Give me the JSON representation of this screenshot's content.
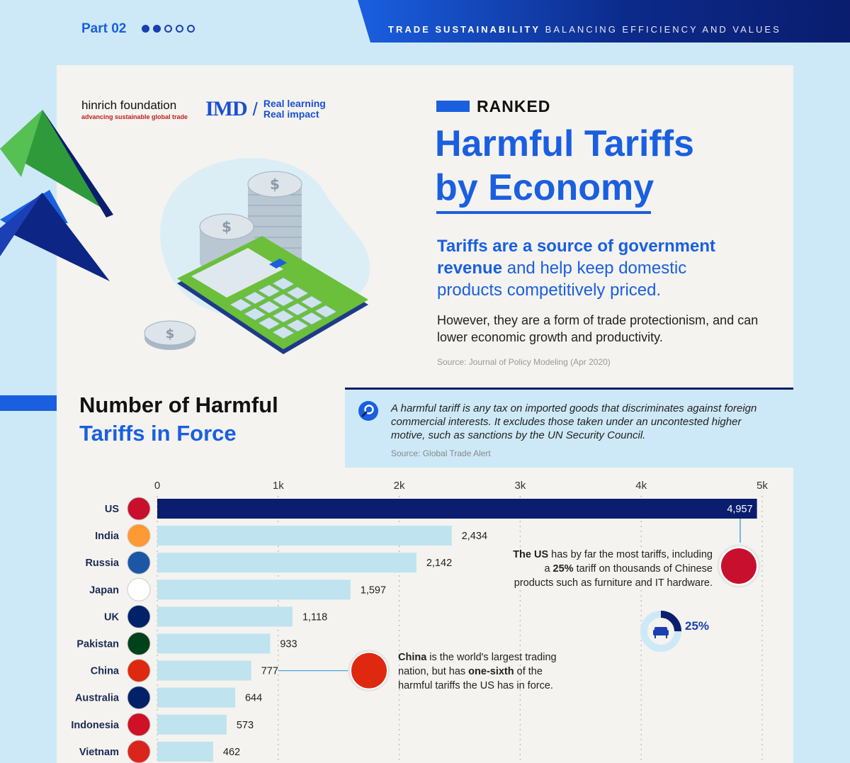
{
  "header": {
    "part_label": "Part 02",
    "dots": [
      true,
      true,
      false,
      false,
      false
    ],
    "series_title": "TRADE SUSTAINABILITY",
    "series_subtitle": "BALANCING EFFICIENCY AND VALUES"
  },
  "logos": {
    "hinrich_name": "hinrich foundation",
    "hinrich_tagline": "advancing sustainable global trade",
    "imd": "IMD",
    "imd_tag1": "Real learning",
    "imd_tag2": "Real impact"
  },
  "hero": {
    "kicker": "RANKED",
    "title_line1": "Harmful Tariffs",
    "title_line2": "by Economy",
    "lead_bold": "Tariffs are a source of government revenue",
    "lead_rest": " and help keep domestic products competitively priced.",
    "paragraph": "However, they are a form of trade protectionism, and can lower economic growth and productivity.",
    "source": "Source: Journal of Policy Modeling (Apr 2020)"
  },
  "section": {
    "title_line1": "Number of Harmful",
    "title_line2": "Tariffs in Force",
    "definition": "A harmful tariff is any tax on imported goods that discriminates against foreign commercial interests. It excludes those taken under an uncontested higher motive, such as sanctions by the UN Security Council.",
    "source": "Source: Global Trade Alert"
  },
  "callouts": {
    "us_b1": "The US",
    "us_t1": " has by far the most tariffs, including a ",
    "us_b2": "25%",
    "us_t2": " tariff on thousands of Chinese products such as furniture and IT hardware.",
    "pct": "25%",
    "pct_value": 25,
    "cn_b1": "China",
    "cn_t1": " is the world's largest trading nation, but has ",
    "cn_b2": "one-sixth",
    "cn_t2": " of the harmful tariffs the US has in force."
  },
  "colors": {
    "accent": "#1a5fe0",
    "navy": "#0a1d6e",
    "bar_light": "#bfe3ef",
    "bar_us": "#0a1d6e"
  },
  "chart_data": {
    "type": "bar",
    "orientation": "horizontal",
    "categories": [
      "US",
      "India",
      "Russia",
      "Japan",
      "UK",
      "Pakistan",
      "China",
      "Australia",
      "Indonesia",
      "Vietnam"
    ],
    "values": [
      4957,
      2434,
      2142,
      1597,
      1118,
      933,
      777,
      644,
      573,
      462
    ],
    "value_labels": [
      "4,957",
      "2,434",
      "2,142",
      "1,597",
      "1,118",
      "933",
      "777",
      "644",
      "573",
      "462"
    ],
    "xticks": [
      0,
      1000,
      2000,
      3000,
      4000,
      5000
    ],
    "xtick_labels": [
      "0",
      "1k",
      "2k",
      "3k",
      "4k",
      "5k"
    ],
    "xlim": [
      0,
      5000
    ],
    "grid": true,
    "flag_icons": [
      "us-flag-icon",
      "india-flag-icon",
      "russia-flag-icon",
      "japan-flag-icon",
      "uk-flag-icon",
      "pakistan-flag-icon",
      "china-flag-icon",
      "australia-flag-icon",
      "indonesia-flag-icon",
      "vietnam-flag-icon"
    ]
  }
}
